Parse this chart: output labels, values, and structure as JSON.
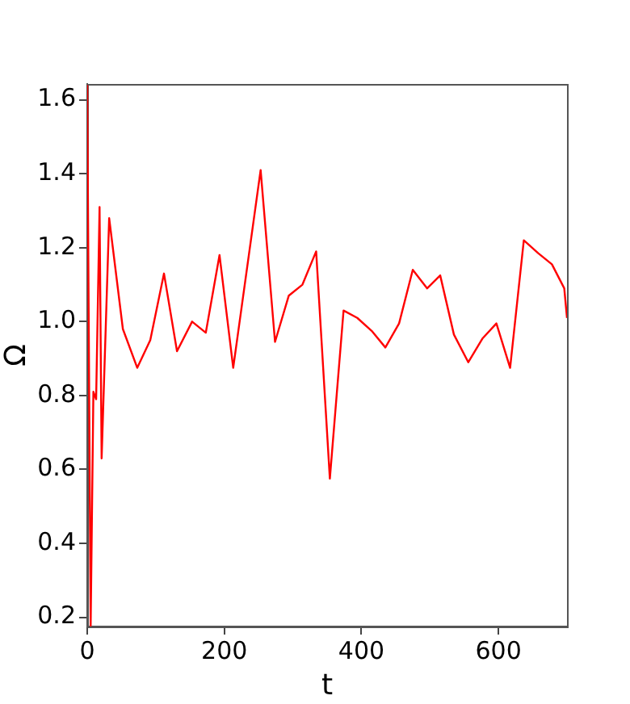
{
  "chart_data": {
    "type": "line",
    "xlabel": "t",
    "ylabel": "Ω",
    "x": [
      0,
      5,
      9,
      13,
      18,
      21,
      32,
      52,
      73,
      92,
      112,
      131,
      153,
      173,
      193,
      213,
      253,
      274,
      294,
      314,
      334,
      354,
      374,
      394,
      415,
      435,
      455,
      475,
      496,
      515,
      535,
      556,
      577,
      597,
      617,
      637,
      658,
      678,
      696,
      700
    ],
    "series": [
      {
        "color": "#ff0000",
        "values": [
          1.64,
          0.175,
          0.81,
          0.79,
          1.31,
          0.63,
          1.28,
          0.98,
          0.875,
          0.95,
          1.13,
          0.92,
          1.0,
          0.97,
          1.18,
          0.875,
          1.41,
          0.945,
          1.07,
          1.1,
          1.19,
          0.575,
          1.03,
          1.01,
          0.975,
          0.93,
          0.995,
          1.14,
          1.09,
          1.125,
          0.965,
          0.89,
          0.955,
          0.995,
          0.875,
          1.22,
          1.185,
          1.155,
          1.09,
          1.01
        ]
      }
    ],
    "xlim": [
      0,
      700
    ],
    "ylim": [
      0.175,
      1.643
    ],
    "xticks": [
      0,
      200,
      400,
      600
    ],
    "yticks": [
      0.2,
      0.4,
      0.6,
      0.8,
      {
        "value": 1,
        "label": "1.0"
      },
      1.2,
      1.4,
      1.6
    ],
    "grid": false,
    "legend": false,
    "marker": "none",
    "line_style": "solid"
  }
}
